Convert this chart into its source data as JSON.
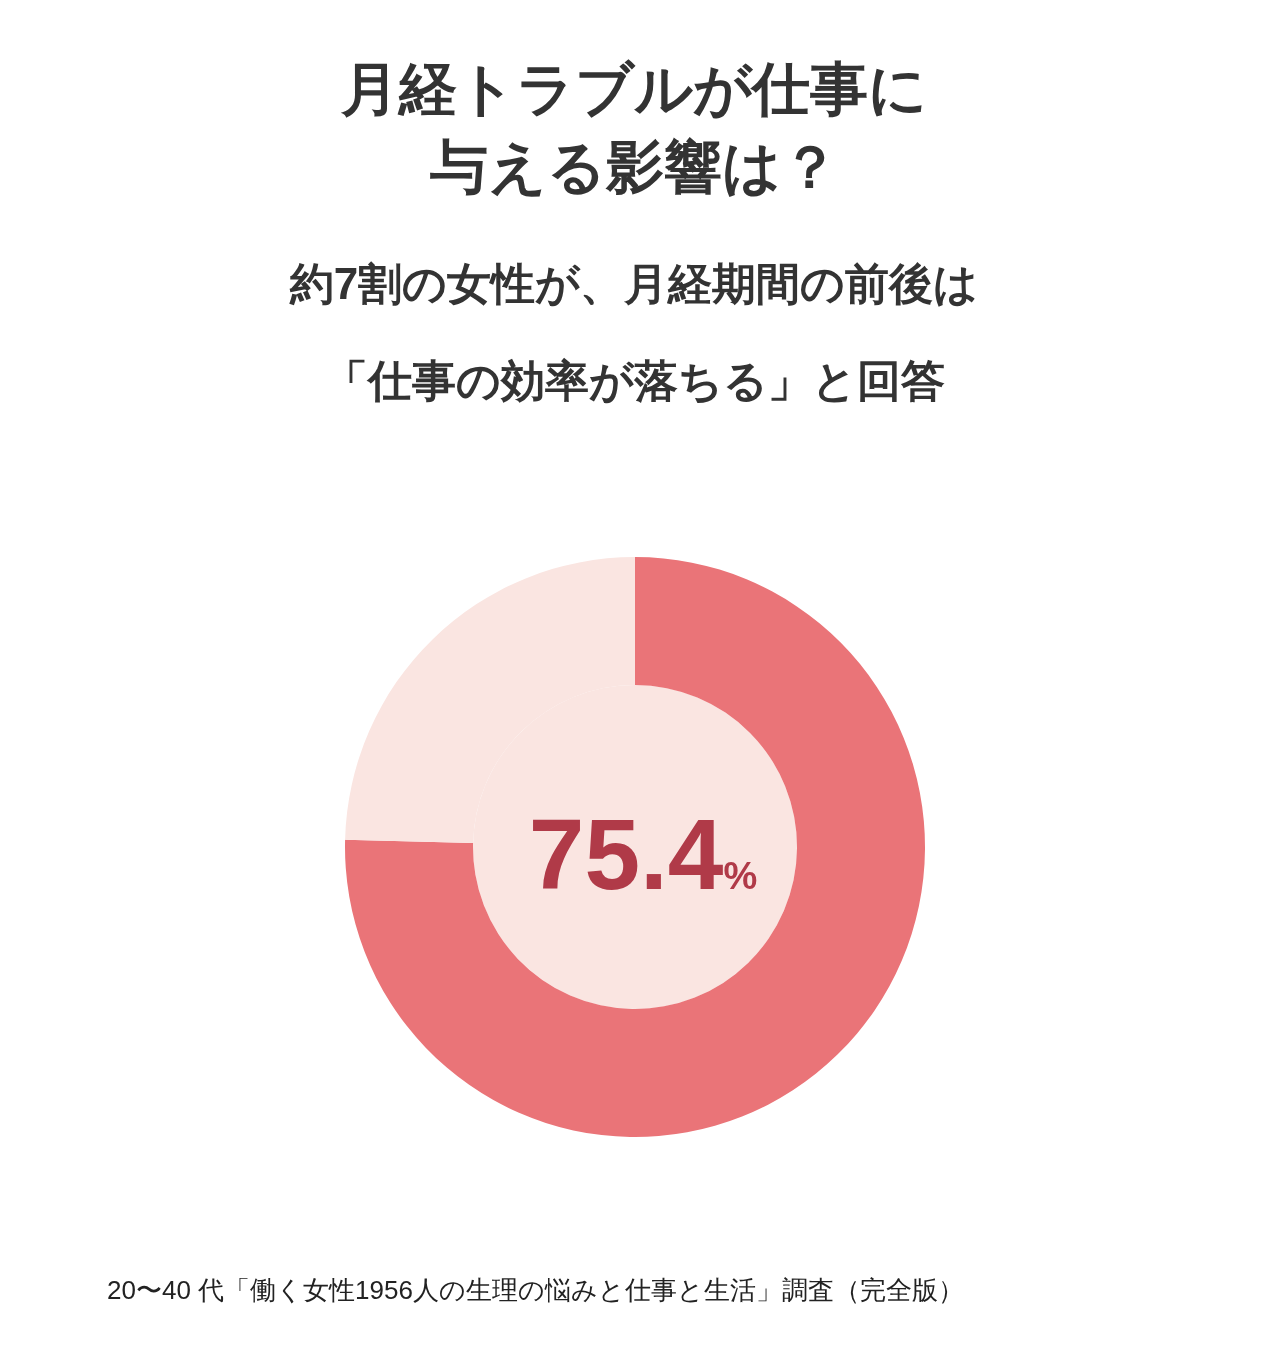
{
  "chart_data": {
    "type": "donut",
    "title": "月経トラブルが仕事に与える影響は？",
    "subtitle": "約7割の女性が、月経期間の前後は「仕事の効率が落ちる」と回答",
    "categories": [
      null,
      null
    ],
    "values": [
      75.4,
      24.6
    ],
    "colors": [
      "#ea7478",
      "#fae5e1"
    ],
    "value_labels": [
      "75.4%",
      null
    ],
    "annotations": [
      "20〜40 代「働く女性1956人の生理の悩みと仕事と生活」調査（完全版）"
    ]
  }
}
